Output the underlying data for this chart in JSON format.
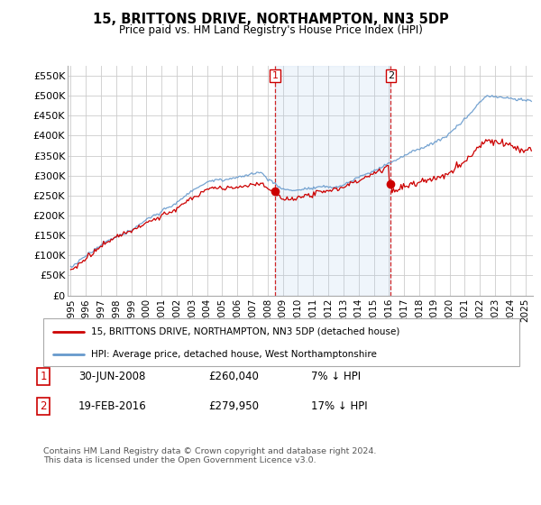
{
  "title": "15, BRITTONS DRIVE, NORTHAMPTON, NN3 5DP",
  "subtitle": "Price paid vs. HM Land Registry's House Price Index (HPI)",
  "ylabel_ticks": [
    "£0",
    "£50K",
    "£100K",
    "£150K",
    "£200K",
    "£250K",
    "£300K",
    "£350K",
    "£400K",
    "£450K",
    "£500K",
    "£550K"
  ],
  "ytick_values": [
    0,
    50000,
    100000,
    150000,
    200000,
    250000,
    300000,
    350000,
    400000,
    450000,
    500000,
    550000
  ],
  "ylim": [
    0,
    575000
  ],
  "xlim_start": 1994.8,
  "xlim_end": 2025.5,
  "sale1_x": 2008.49,
  "sale1_y": 260040,
  "sale2_x": 2016.12,
  "sale2_y": 279950,
  "legend_line1": "15, BRITTONS DRIVE, NORTHAMPTON, NN3 5DP (detached house)",
  "legend_line2": "HPI: Average price, detached house, West Northamptonshire",
  "note1_label": "1",
  "note1_date": "30-JUN-2008",
  "note1_price": "£260,040",
  "note1_hpi": "7% ↓ HPI",
  "note2_label": "2",
  "note2_date": "19-FEB-2016",
  "note2_price": "£279,950",
  "note2_hpi": "17% ↓ HPI",
  "copyright": "Contains HM Land Registry data © Crown copyright and database right 2024.\nThis data is licensed under the Open Government Licence v3.0.",
  "red_color": "#cc0000",
  "blue_color": "#6699cc",
  "bg_color": "#ffffff",
  "grid_color": "#cccccc",
  "highlight_bg": "#ddeeff"
}
